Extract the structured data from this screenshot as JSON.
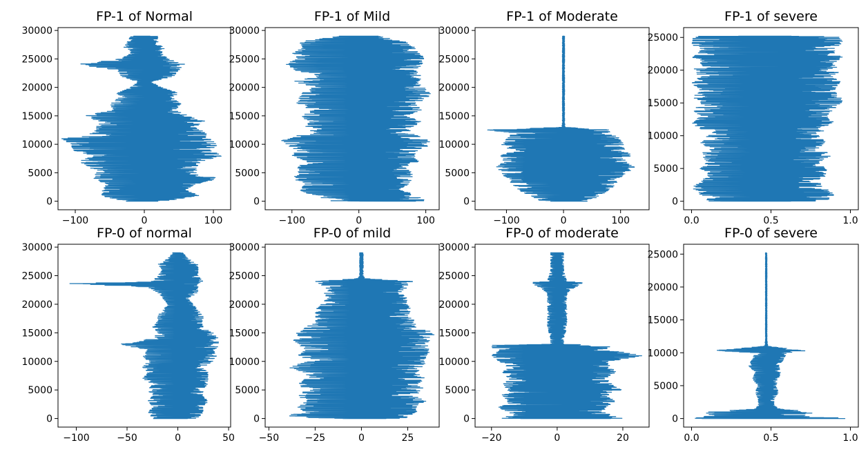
{
  "figure": {
    "background": "#ffffff",
    "line_color": "#1f77b4"
  },
  "chart_data": [
    {
      "type": "line",
      "title": "FP-1 of Normal",
      "orientation": "horizontal-trace",
      "xlim": [
        -125,
        125
      ],
      "ylim": [
        -1500,
        30500
      ],
      "xticks": [
        -100,
        0,
        100
      ],
      "xtick_labels": [
        "−100",
        "0",
        "100"
      ],
      "yticks": [
        0,
        5000,
        10000,
        15000,
        20000,
        25000,
        30000
      ],
      "ytick_labels": [
        "0",
        "5000",
        "10000",
        "15000",
        "20000",
        "25000",
        "30000"
      ],
      "samples": 29000,
      "envelope": [
        [
          0,
          -30,
          30
        ],
        [
          1000,
          -65,
          80
        ],
        [
          2000,
          -60,
          60
        ],
        [
          3000,
          -55,
          75
        ],
        [
          4000,
          -75,
          110
        ],
        [
          5000,
          -70,
          80
        ],
        [
          6000,
          -80,
          75
        ],
        [
          7000,
          -95,
          85
        ],
        [
          8000,
          -75,
          115
        ],
        [
          9000,
          -105,
          95
        ],
        [
          10000,
          -110,
          110
        ],
        [
          11000,
          -120,
          95
        ],
        [
          12000,
          -75,
          90
        ],
        [
          13000,
          -70,
          75
        ],
        [
          14000,
          -65,
          90
        ],
        [
          15000,
          -90,
          65
        ],
        [
          16000,
          -45,
          45
        ],
        [
          17000,
          -50,
          55
        ],
        [
          18000,
          -40,
          45
        ],
        [
          19000,
          -40,
          50
        ],
        [
          20000,
          -20,
          25
        ],
        [
          21000,
          -10,
          10
        ],
        [
          22000,
          -35,
          45
        ],
        [
          23000,
          -40,
          50
        ],
        [
          24000,
          -100,
          60
        ],
        [
          25000,
          -35,
          35
        ],
        [
          26000,
          -20,
          25
        ],
        [
          27000,
          -30,
          30
        ],
        [
          28000,
          -25,
          20
        ],
        [
          29000,
          -20,
          20
        ]
      ]
    },
    {
      "type": "line",
      "title": "FP-1 of Mild",
      "orientation": "horizontal-trace",
      "xlim": [
        -140,
        120
      ],
      "ylim": [
        -1500,
        30500
      ],
      "xticks": [
        -100,
        0,
        100
      ],
      "xtick_labels": [
        "−100",
        "0",
        "100"
      ],
      "yticks": [
        0,
        5000,
        10000,
        15000,
        20000,
        25000,
        30000
      ],
      "ytick_labels": [
        "0",
        "5000",
        "10000",
        "15000",
        "20000",
        "25000",
        "30000"
      ],
      "samples": 29000,
      "envelope": [
        [
          0,
          -40,
          100
        ],
        [
          1000,
          -70,
          90
        ],
        [
          2000,
          -90,
          60
        ],
        [
          3000,
          -80,
          75
        ],
        [
          4000,
          -100,
          80
        ],
        [
          5000,
          -90,
          80
        ],
        [
          6000,
          -95,
          70
        ],
        [
          7000,
          -80,
          90
        ],
        [
          8000,
          -100,
          85
        ],
        [
          9000,
          -95,
          90
        ],
        [
          10000,
          -110,
          110
        ],
        [
          11000,
          -120,
          105
        ],
        [
          12000,
          -70,
          75
        ],
        [
          13000,
          -80,
          80
        ],
        [
          14000,
          -75,
          95
        ],
        [
          15000,
          -90,
          70
        ],
        [
          16000,
          -70,
          95
        ],
        [
          17000,
          -95,
          85
        ],
        [
          18000,
          -90,
          100
        ],
        [
          19000,
          -85,
          110
        ],
        [
          20000,
          -70,
          100
        ],
        [
          21000,
          -100,
          90
        ],
        [
          22000,
          -60,
          95
        ],
        [
          23000,
          -95,
          85
        ],
        [
          24000,
          -110,
          95
        ],
        [
          25000,
          -95,
          100
        ],
        [
          26000,
          -100,
          90
        ],
        [
          27000,
          -85,
          85
        ],
        [
          28000,
          -90,
          70
        ],
        [
          29000,
          -30,
          30
        ]
      ]
    },
    {
      "type": "line",
      "title": "FP-1 of Moderate",
      "orientation": "horizontal-trace",
      "xlim": [
        -155,
        150
      ],
      "ylim": [
        -1500,
        30500
      ],
      "xticks": [
        -100,
        0,
        100
      ],
      "xtick_labels": [
        "−100",
        "0",
        "100"
      ],
      "yticks": [
        0,
        5000,
        10000,
        15000,
        20000,
        25000,
        30000
      ],
      "ytick_labels": [
        "0",
        "5000",
        "10000",
        "15000",
        "20000",
        "25000",
        "30000"
      ],
      "samples": 29000,
      "envelope": [
        [
          0,
          -40,
          45
        ],
        [
          1000,
          -60,
          65
        ],
        [
          2000,
          -80,
          80
        ],
        [
          3000,
          -90,
          95
        ],
        [
          4000,
          -100,
          100
        ],
        [
          5000,
          -110,
          115
        ],
        [
          6000,
          -120,
          125
        ],
        [
          7000,
          -105,
          110
        ],
        [
          8000,
          -115,
          120
        ],
        [
          9000,
          -100,
          110
        ],
        [
          10000,
          -110,
          105
        ],
        [
          11000,
          -100,
          100
        ],
        [
          12000,
          -90,
          80
        ],
        [
          12500,
          -140,
          85
        ],
        [
          13000,
          -3,
          3
        ],
        [
          14000,
          -2,
          2
        ],
        [
          16000,
          -2,
          2
        ],
        [
          20000,
          -2,
          2
        ],
        [
          24000,
          -2,
          2
        ],
        [
          29000,
          -2,
          2
        ]
      ]
    },
    {
      "type": "line",
      "title": "FP-1 of severe",
      "orientation": "horizontal-trace",
      "xlim": [
        -0.05,
        1.05
      ],
      "ylim": [
        -1300,
        26500
      ],
      "xticks": [
        0.0,
        0.5,
        1.0
      ],
      "xtick_labels": [
        "0.0",
        "0.5",
        "1.0"
      ],
      "yticks": [
        0,
        5000,
        10000,
        15000,
        20000,
        25000
      ],
      "ytick_labels": [
        "0",
        "5000",
        "10000",
        "15000",
        "20000",
        "25000"
      ],
      "samples": 25200,
      "envelope": [
        [
          0,
          0.1,
          0.85
        ],
        [
          1000,
          0.05,
          0.9
        ],
        [
          2000,
          0.0,
          0.85
        ],
        [
          3000,
          0.05,
          0.8
        ],
        [
          4000,
          0.1,
          0.85
        ],
        [
          5000,
          0.05,
          0.85
        ],
        [
          6000,
          0.1,
          0.8
        ],
        [
          7000,
          0.05,
          0.9
        ],
        [
          8000,
          0.1,
          0.8
        ],
        [
          9000,
          0.05,
          0.85
        ],
        [
          10000,
          0.1,
          0.8
        ],
        [
          10800,
          0.15,
          0.85
        ],
        [
          11000,
          0.05,
          0.8
        ],
        [
          12000,
          0.0,
          0.9
        ],
        [
          13000,
          0.05,
          0.85
        ],
        [
          14000,
          0.0,
          0.9
        ],
        [
          15000,
          0.05,
          0.95
        ],
        [
          16000,
          0.0,
          0.95
        ],
        [
          17000,
          0.05,
          0.9
        ],
        [
          18000,
          0.0,
          0.95
        ],
        [
          19000,
          0.05,
          0.9
        ],
        [
          20000,
          0.0,
          0.95
        ],
        [
          21000,
          0.05,
          0.9
        ],
        [
          22000,
          0.0,
          0.95
        ],
        [
          23000,
          0.05,
          0.9
        ],
        [
          24000,
          0.0,
          0.95
        ],
        [
          25000,
          0.0,
          0.95
        ],
        [
          25200,
          0.05,
          0.9
        ]
      ]
    },
    {
      "type": "line",
      "title": "FP-0 of normal",
      "orientation": "horizontal-trace",
      "xlim": [
        -118,
        52
      ],
      "ylim": [
        -1500,
        30500
      ],
      "xticks": [
        -100,
        -50,
        0,
        50
      ],
      "xtick_labels": [
        "−100",
        "−50",
        "0",
        "50"
      ],
      "yticks": [
        0,
        5000,
        10000,
        15000,
        20000,
        25000,
        30000
      ],
      "ytick_labels": [
        "0",
        "5000",
        "10000",
        "15000",
        "20000",
        "25000",
        "30000"
      ],
      "samples": 29000,
      "envelope": [
        [
          0,
          -25,
          20
        ],
        [
          1000,
          -30,
          25
        ],
        [
          2000,
          -25,
          25
        ],
        [
          3000,
          -30,
          30
        ],
        [
          4000,
          -25,
          25
        ],
        [
          5000,
          -30,
          25
        ],
        [
          6000,
          -25,
          30
        ],
        [
          7000,
          -35,
          30
        ],
        [
          8000,
          -30,
          30
        ],
        [
          9000,
          -35,
          25
        ],
        [
          10000,
          -30,
          35
        ],
        [
          11000,
          -35,
          40
        ],
        [
          12000,
          -30,
          35
        ],
        [
          13000,
          -60,
          45
        ],
        [
          14000,
          -25,
          40
        ],
        [
          15000,
          -20,
          35
        ],
        [
          16000,
          -25,
          25
        ],
        [
          17000,
          -20,
          25
        ],
        [
          18000,
          -20,
          25
        ],
        [
          19000,
          -15,
          20
        ],
        [
          20000,
          -10,
          15
        ],
        [
          21000,
          -15,
          10
        ],
        [
          22000,
          -20,
          20
        ],
        [
          23000,
          -30,
          20
        ],
        [
          23600,
          -110,
          20
        ],
        [
          24000,
          -25,
          25
        ],
        [
          25000,
          -20,
          20
        ],
        [
          26000,
          -15,
          20
        ],
        [
          27000,
          -20,
          20
        ],
        [
          28000,
          -10,
          10
        ],
        [
          29000,
          -5,
          5
        ]
      ]
    },
    {
      "type": "line",
      "title": "FP-0 of mild",
      "orientation": "horizontal-trace",
      "xlim": [
        -52,
        42
      ],
      "ylim": [
        -1500,
        30500
      ],
      "xticks": [
        -50,
        -25,
        0,
        25
      ],
      "xtick_labels": [
        "−50",
        "−25",
        "0",
        "25"
      ],
      "yticks": [
        0,
        5000,
        10000,
        15000,
        20000,
        25000,
        30000
      ],
      "ytick_labels": [
        "0",
        "5000",
        "10000",
        "15000",
        "20000",
        "25000",
        "30000"
      ],
      "samples": 29000,
      "envelope": [
        [
          0,
          -20,
          20
        ],
        [
          500,
          -47,
          35
        ],
        [
          1000,
          -30,
          30
        ],
        [
          2000,
          -35,
          30
        ],
        [
          3000,
          -30,
          35
        ],
        [
          4000,
          -35,
          30
        ],
        [
          5000,
          -30,
          35
        ],
        [
          6000,
          -35,
          30
        ],
        [
          7000,
          -30,
          35
        ],
        [
          8000,
          -30,
          30
        ],
        [
          9000,
          -40,
          35
        ],
        [
          10000,
          -30,
          35
        ],
        [
          11000,
          -35,
          35
        ],
        [
          12000,
          -30,
          38
        ],
        [
          13000,
          -35,
          35
        ],
        [
          14000,
          -38,
          38
        ],
        [
          15000,
          -35,
          40
        ],
        [
          16000,
          -30,
          30
        ],
        [
          17000,
          -25,
          30
        ],
        [
          18000,
          -25,
          25
        ],
        [
          19000,
          -25,
          28
        ],
        [
          20000,
          -22,
          25
        ],
        [
          21000,
          -20,
          25
        ],
        [
          22000,
          -20,
          22
        ],
        [
          23000,
          -20,
          25
        ],
        [
          24000,
          -25,
          28
        ],
        [
          24500,
          -2,
          2
        ],
        [
          25000,
          -1,
          1
        ],
        [
          27000,
          -1,
          1
        ],
        [
          29000,
          -1,
          1
        ]
      ]
    },
    {
      "type": "line",
      "title": "FP-0 of moderate",
      "orientation": "horizontal-trace",
      "xlim": [
        -25,
        28
      ],
      "ylim": [
        -1500,
        30500
      ],
      "xticks": [
        -20,
        0,
        20
      ],
      "xtick_labels": [
        "−20",
        "0",
        "20"
      ],
      "yticks": [
        0,
        5000,
        10000,
        15000,
        20000,
        25000,
        30000
      ],
      "ytick_labels": [
        "0",
        "5000",
        "10000",
        "15000",
        "20000",
        "25000",
        "30000"
      ],
      "samples": 29000,
      "envelope": [
        [
          0,
          -17,
          20
        ],
        [
          1000,
          -15,
          15
        ],
        [
          2000,
          -18,
          15
        ],
        [
          3000,
          -15,
          18
        ],
        [
          4000,
          -17,
          15
        ],
        [
          5000,
          -15,
          20
        ],
        [
          6000,
          -17,
          17
        ],
        [
          7000,
          -15,
          15
        ],
        [
          8000,
          -17,
          18
        ],
        [
          9000,
          -15,
          17
        ],
        [
          10000,
          -18,
          16
        ],
        [
          11000,
          -20,
          27
        ],
        [
          12000,
          -18,
          16
        ],
        [
          12800,
          -22,
          16
        ],
        [
          13000,
          -2,
          2
        ],
        [
          14000,
          -2,
          2
        ],
        [
          16000,
          -3,
          3
        ],
        [
          18000,
          -3,
          3
        ],
        [
          20000,
          -3,
          3
        ],
        [
          22000,
          -3,
          3
        ],
        [
          23800,
          -8,
          8
        ],
        [
          24000,
          -3,
          3
        ],
        [
          26000,
          -2,
          2
        ],
        [
          29000,
          -2,
          2
        ]
      ]
    },
    {
      "type": "line",
      "title": "FP-0 of severe",
      "orientation": "horizontal-trace",
      "xlim": [
        -0.05,
        1.05
      ],
      "ylim": [
        -1300,
        26500
      ],
      "xticks": [
        0.0,
        0.5,
        1.0
      ],
      "xtick_labels": [
        "0.0",
        "0.5",
        "1.0"
      ],
      "yticks": [
        0,
        5000,
        10000,
        15000,
        20000,
        25000
      ],
      "ytick_labels": [
        "0",
        "5000",
        "10000",
        "15000",
        "20000",
        "25000"
      ],
      "samples": 25200,
      "envelope": [
        [
          0,
          0.0,
          1.0
        ],
        [
          500,
          0.05,
          0.7
        ],
        [
          1000,
          0.1,
          0.8
        ],
        [
          1500,
          0.4,
          0.55
        ],
        [
          2000,
          0.42,
          0.52
        ],
        [
          3000,
          0.42,
          0.52
        ],
        [
          4000,
          0.4,
          0.55
        ],
        [
          5000,
          0.42,
          0.53
        ],
        [
          6000,
          0.38,
          0.55
        ],
        [
          7000,
          0.4,
          0.56
        ],
        [
          8000,
          0.36,
          0.55
        ],
        [
          9000,
          0.38,
          0.58
        ],
        [
          10000,
          0.4,
          0.6
        ],
        [
          10300,
          0.12,
          0.72
        ],
        [
          11000,
          0.46,
          0.48
        ],
        [
          12000,
          0.465,
          0.475
        ],
        [
          16000,
          0.465,
          0.475
        ],
        [
          20000,
          0.465,
          0.475
        ],
        [
          25200,
          0.465,
          0.475
        ]
      ]
    }
  ]
}
